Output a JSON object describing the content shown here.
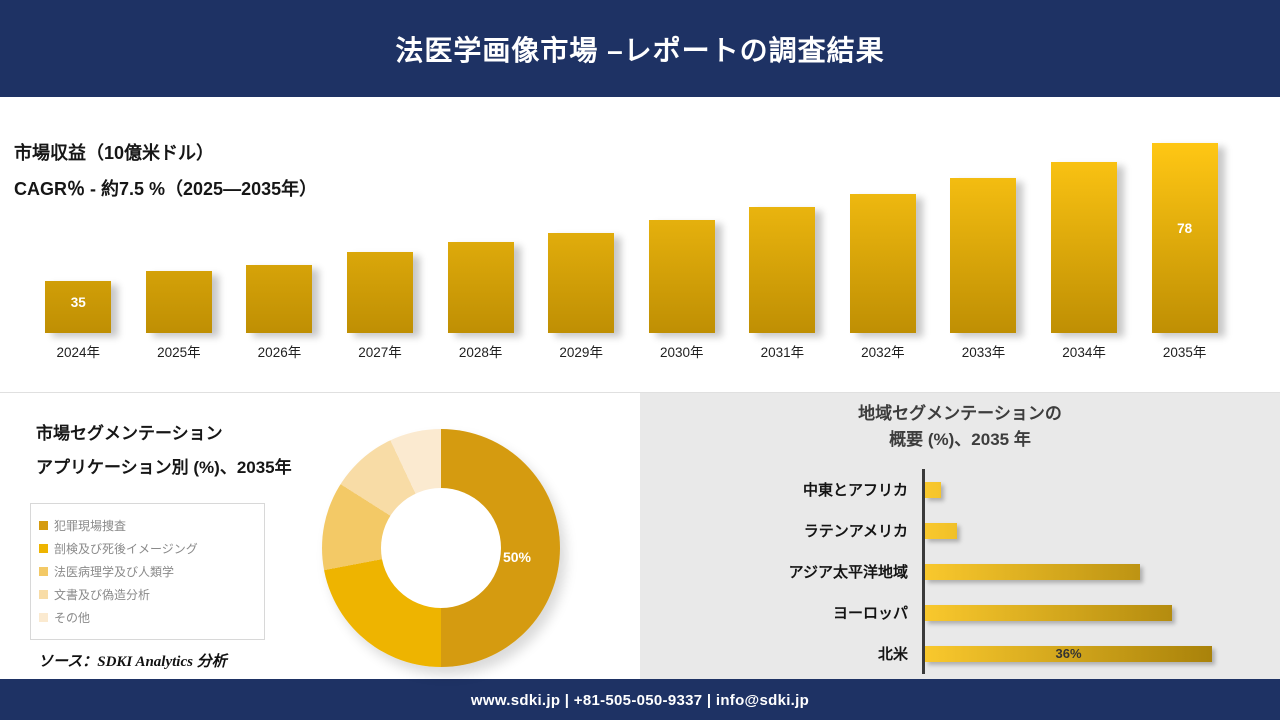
{
  "header": {
    "title": "法医学画像市場 –レポートの調査結果"
  },
  "revenue": {
    "title": "市場収益（10億米ドル）",
    "cagr": "CAGR％ - 約7.5 %（2025―2035年）"
  },
  "segmentation": {
    "title_line1": "市場セグメンテーション",
    "title_line2": "アプリケーション別 (%)、2035年",
    "center_label": "50%"
  },
  "regional": {
    "title_line1": "地域セグメンテーションの",
    "title_line2": "概要 (%)、2035 年"
  },
  "source": {
    "text": "ソース：SDKI Analytics 分析"
  },
  "footer": {
    "text": "www.sdki.jp | +81-505-050-9337 | info@sdki.jp"
  },
  "colors": {
    "navy": "#1e3264",
    "panel_gray": "#e9e9e9",
    "vbar_gradient_bottom": "#bf8f03",
    "vbar_gradient_top": "#ffc714",
    "hbar_gradient_start": "#f9c82d",
    "hbar_gradient_end": "#a9820a",
    "axis": "#3a3a3a"
  },
  "chart_data": [
    {
      "type": "bar",
      "orientation": "vertical",
      "title": "市場収益（10億米ドル）",
      "subtitle": "CAGR％ - 約7.5 %（2025―2035年）",
      "categories": [
        "2024年",
        "2025年",
        "2026年",
        "2027年",
        "2028年",
        "2029年",
        "2030年",
        "2031年",
        "2032年",
        "2033年",
        "2034年",
        "2035年"
      ],
      "values": [
        35,
        38,
        40,
        44,
        47,
        50,
        54,
        58,
        62,
        67,
        72,
        78
      ],
      "data_labels": [
        "35",
        "",
        "",
        "",
        "",
        "",
        "",
        "",
        "",
        "",
        "",
        "78"
      ],
      "ylabel": "10億米ドル",
      "ylim": [
        0,
        80
      ],
      "grid": false,
      "legend_position": "none"
    },
    {
      "type": "pie",
      "donut": true,
      "title": "市場セグメンテーション アプリケーション別 (%)、2035年",
      "labels": [
        "犯罪現場捜査",
        "剖検及び死後イメージング",
        "法医病理学及び人類学",
        "文書及び偽造分析",
        "その他"
      ],
      "values": [
        50,
        22,
        12,
        9,
        7
      ],
      "colors": [
        "#d59b10",
        "#eeb400",
        "#f3c966",
        "#f8dca6",
        "#fbead0"
      ],
      "data_labels": [
        "50%",
        "",
        "",
        "",
        ""
      ],
      "legend_position": "left"
    },
    {
      "type": "bar",
      "orientation": "horizontal",
      "title": "地域セグメンテーションの概要 (%)、2035 年",
      "categories": [
        "中東とアフリカ",
        "ラテンアメリカ",
        "アジア太平洋地域",
        "ヨーロッパ",
        "北米"
      ],
      "values": [
        2,
        4,
        27,
        31,
        36
      ],
      "data_labels": [
        "",
        "",
        "",
        "",
        "36%"
      ],
      "xlim": [
        0,
        40
      ],
      "grid": false
    }
  ]
}
